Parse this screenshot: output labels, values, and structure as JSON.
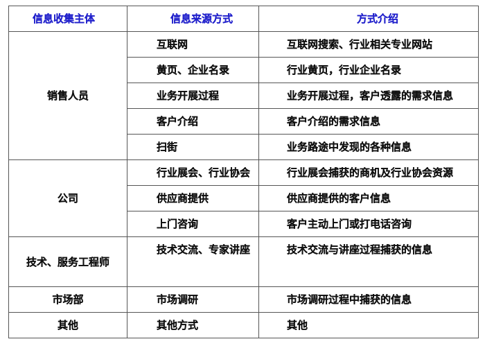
{
  "header": [
    "信息收集主体",
    "信息来源方式",
    "方式介绍"
  ],
  "groups": [
    {
      "subject": "销售人员",
      "rows": [
        [
          "互联网",
          "互联网搜索、行业相关专业网站"
        ],
        [
          "黄页、企业名录",
          "行业黄页，行业企业名录"
        ],
        [
          "业务开展过程",
          "业务开展过程，客户透露的需求信息"
        ],
        [
          "客户介绍",
          "客户介绍的需求信息"
        ],
        [
          "扫街",
          "业务路途中发现的各种信息"
        ]
      ]
    },
    {
      "subject": "公司",
      "rows": [
        [
          "行业展会、行业协会",
          "行业展会捕获的商机及行业协会资源"
        ],
        [
          "供应商提供",
          "供应商提供的客户信息"
        ],
        [
          "上门咨询",
          "客户主动上门或打电话咨询"
        ]
      ]
    },
    {
      "subject": "技术、服务工程师",
      "rows": [
        [
          "技术交流、专家讲座",
          "技术交流与讲座过程捕获的信息"
        ]
      ]
    },
    {
      "subject": "市场部",
      "rows": [
        [
          "市场调研",
          "市场调研过程中捕获的信息"
        ]
      ]
    },
    {
      "subject": "其他",
      "rows": [
        [
          "其他方式",
          "其他"
        ]
      ]
    }
  ],
  "colors": {
    "header_text": "#2222cc",
    "border": "#555555"
  }
}
